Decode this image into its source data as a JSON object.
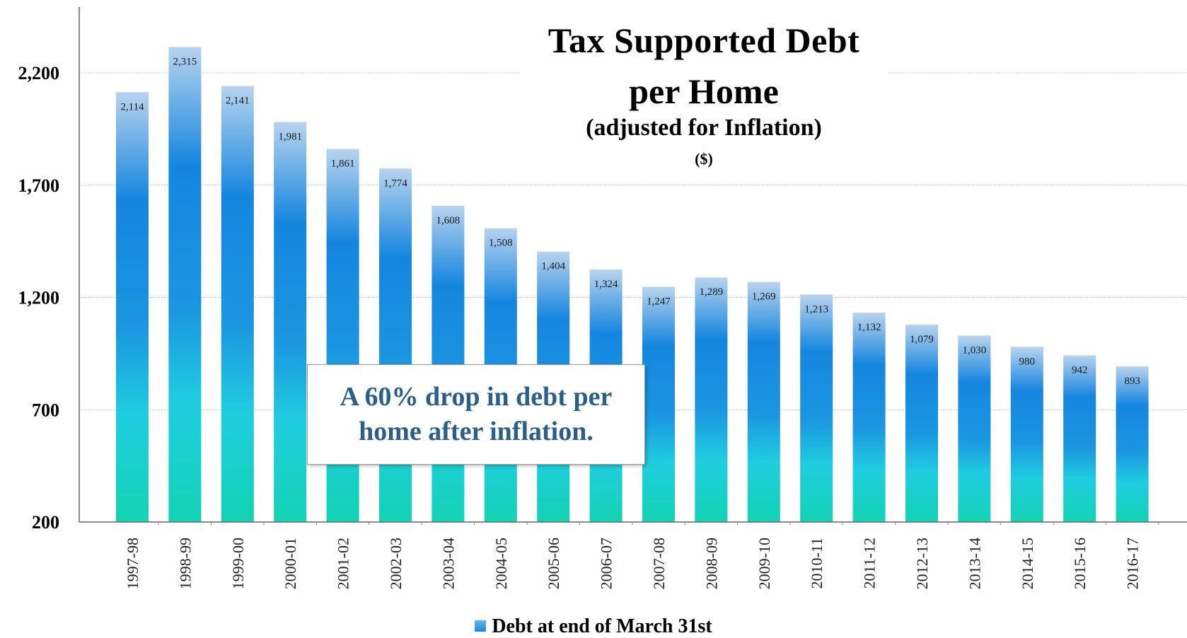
{
  "chart_data": {
    "type": "bar",
    "title": "Tax Supported Debt per Home",
    "title_lines": [
      "Tax Supported Debt",
      "per Home"
    ],
    "subtitle": "(adjusted for Inflation)",
    "unit": "($)",
    "xlabel": "",
    "ylabel": "",
    "ylim": [
      200,
      2600
    ],
    "yticks": [
      200,
      700,
      1200,
      1700,
      2200
    ],
    "ytick_labels": [
      "200",
      "700",
      "1,200",
      "1,700",
      "2,200"
    ],
    "grid": "horizontal dotted",
    "categories": [
      "1997-98",
      "1998-99",
      "1999-00",
      "2000-01",
      "2001-02",
      "2002-03",
      "2003-04",
      "2004-05",
      "2005-06",
      "2006-07",
      "2007-08",
      "2008-09",
      "2009-10",
      "2010-11",
      "2011-12",
      "2012-13",
      "2013-14",
      "2014-15",
      "2015-16",
      "2016-17"
    ],
    "series": [
      {
        "name": "Debt at end of March 31st",
        "values": [
          2114,
          2315,
          2141,
          1981,
          1861,
          1774,
          1608,
          1508,
          1404,
          1324,
          1247,
          1289,
          1269,
          1213,
          1132,
          1079,
          1030,
          980,
          942,
          893
        ],
        "labels": [
          "2,114",
          "2,315",
          "2,141",
          "1,981",
          "1,861",
          "1,774",
          "1,608",
          "1,508",
          "1,404",
          "1,324",
          "1,247",
          "1,289",
          "1,269",
          "1,213",
          "1,132",
          "1,079",
          "1,030",
          "980",
          "942",
          "893"
        ]
      }
    ],
    "annotation": "A 60% drop in debt per home after inflation.",
    "legend": {
      "position": "bottom",
      "label": "Debt at end of March 31st"
    },
    "colors": {
      "bar_top": "#b8d3ee",
      "bar_mid": "#1586df",
      "bar_bottom": "#12d3b3",
      "callout_text": "#2a5f8a"
    }
  }
}
